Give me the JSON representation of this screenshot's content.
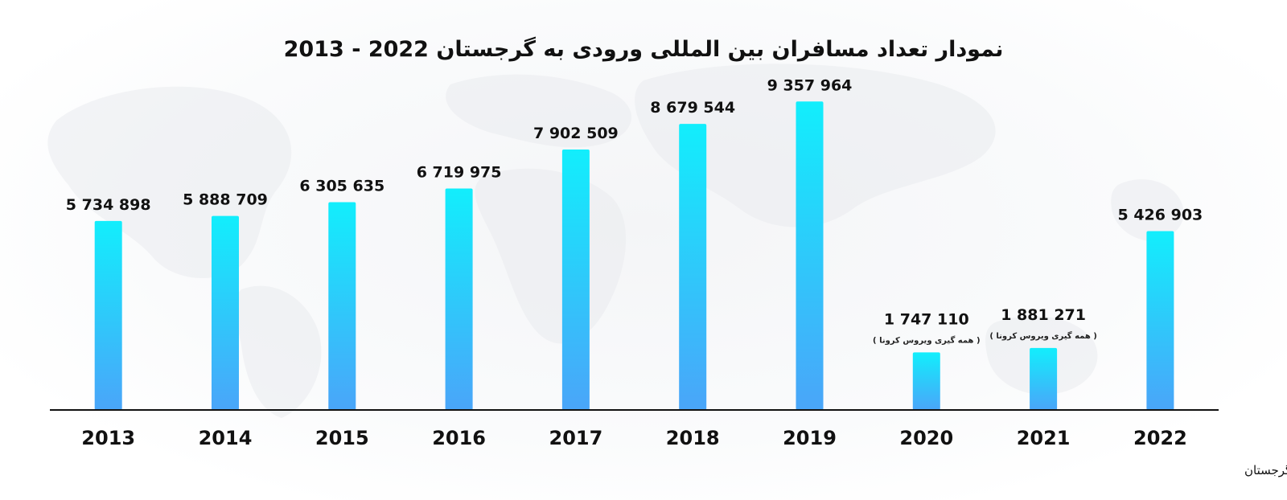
{
  "chart_data": {
    "type": "bar",
    "title": "نمودار تعداد مسافران بین المللی ورودی به گرجستان 2022 - 2013",
    "categories": [
      "2013",
      "2014",
      "2015",
      "2016",
      "2017",
      "2018",
      "2019",
      "2020",
      "2021",
      "2022"
    ],
    "values": [
      5734898,
      5888709,
      6305635,
      6719975,
      7902509,
      8679544,
      9357964,
      1747110,
      1881271,
      5426903
    ],
    "value_labels": [
      "5 734 898",
      "5 888 709",
      "6 305 635",
      "6 719 975",
      "7 902 509",
      "8 679 544",
      "9 357 964",
      "1 747 110",
      "1 881 271",
      "5 426 903"
    ],
    "notes": [
      {
        "category": "2020",
        "text": "( همه گیری ویروس کرونا )"
      },
      {
        "category": "2021",
        "text": "( همه گیری ویروس کرونا )"
      }
    ],
    "ylim": [
      0,
      10000000
    ],
    "grid": false,
    "legend": "none",
    "source": "منبع : وزارت امور داخلی گرجستان",
    "colors": {
      "bar_top": "#12eefc",
      "bar_bottom": "#4aa5f9",
      "axis": "#111111",
      "map": "#e9ebee",
      "text": "#111111"
    }
  }
}
